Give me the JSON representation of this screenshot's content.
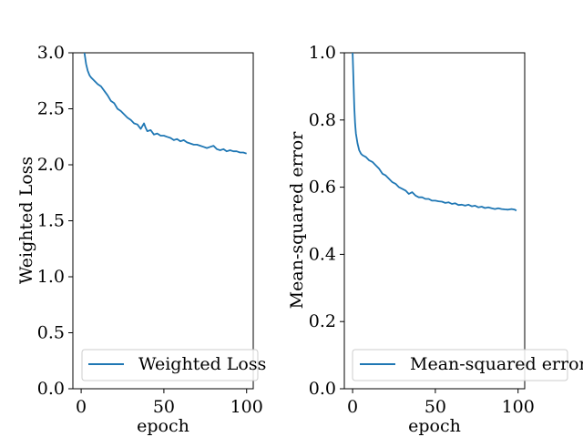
{
  "chart_data": [
    {
      "type": "line",
      "xlabel": "epoch",
      "ylabel": "Weighted Loss",
      "xlim": [
        -5,
        104
      ],
      "ylim": [
        0,
        3.0
      ],
      "xticks": [
        "0",
        "50",
        "100"
      ],
      "yticks": [
        "0.0",
        "0.5",
        "1.0",
        "1.5",
        "2.0",
        "2.5",
        "3.0"
      ],
      "grid": false,
      "legend_position": "lower-right",
      "series": [
        {
          "name": "Weighted Loss",
          "color": "#1f77b4",
          "x": [
            2,
            3,
            4,
            5,
            6,
            8,
            10,
            12,
            14,
            16,
            18,
            20,
            22,
            24,
            26,
            28,
            30,
            32,
            34,
            36,
            38,
            39,
            40,
            42,
            44,
            46,
            48,
            50,
            52,
            54,
            56,
            58,
            60,
            62,
            64,
            66,
            68,
            70,
            72,
            74,
            76,
            78,
            80,
            82,
            84,
            86,
            88,
            90,
            92,
            94,
            96,
            98,
            100
          ],
          "values": [
            3.0,
            2.9,
            2.84,
            2.8,
            2.78,
            2.75,
            2.72,
            2.7,
            2.66,
            2.62,
            2.57,
            2.55,
            2.5,
            2.48,
            2.45,
            2.42,
            2.4,
            2.37,
            2.36,
            2.32,
            2.37,
            2.33,
            2.3,
            2.31,
            2.27,
            2.28,
            2.26,
            2.26,
            2.25,
            2.24,
            2.22,
            2.23,
            2.21,
            2.22,
            2.2,
            2.19,
            2.18,
            2.18,
            2.17,
            2.16,
            2.15,
            2.16,
            2.17,
            2.14,
            2.13,
            2.14,
            2.12,
            2.13,
            2.12,
            2.12,
            2.11,
            2.11,
            2.1
          ]
        }
      ]
    },
    {
      "type": "line",
      "xlabel": "epoch",
      "ylabel": "Mean-squared error",
      "xlim": [
        -5,
        104
      ],
      "ylim": [
        0,
        1.0
      ],
      "xticks": [
        "0",
        "50",
        "100"
      ],
      "yticks": [
        "0.0",
        "0.2",
        "0.4",
        "0.6",
        "0.8",
        "1.0"
      ],
      "grid": false,
      "legend_position": "lower-right",
      "series": [
        {
          "name": "Mean-squared error",
          "color": "#1f77b4",
          "x": [
            0,
            0.5,
            1,
            1.5,
            2,
            3,
            4,
            5,
            6,
            8,
            10,
            12,
            14,
            16,
            18,
            20,
            22,
            24,
            26,
            28,
            30,
            32,
            34,
            36,
            38,
            40,
            42,
            44,
            46,
            48,
            50,
            52,
            54,
            56,
            58,
            60,
            62,
            64,
            66,
            68,
            70,
            72,
            74,
            76,
            78,
            80,
            82,
            84,
            86,
            88,
            90,
            92,
            94,
            96,
            98,
            99
          ],
          "values": [
            1.0,
            0.92,
            0.84,
            0.79,
            0.76,
            0.73,
            0.71,
            0.7,
            0.695,
            0.69,
            0.68,
            0.675,
            0.665,
            0.655,
            0.64,
            0.635,
            0.625,
            0.615,
            0.61,
            0.6,
            0.595,
            0.59,
            0.58,
            0.585,
            0.575,
            0.57,
            0.57,
            0.565,
            0.565,
            0.56,
            0.56,
            0.558,
            0.557,
            0.553,
            0.555,
            0.55,
            0.552,
            0.547,
            0.548,
            0.545,
            0.548,
            0.543,
            0.545,
            0.54,
            0.542,
            0.538,
            0.54,
            0.537,
            0.535,
            0.537,
            0.535,
            0.534,
            0.533,
            0.535,
            0.533,
            0.53
          ]
        }
      ]
    }
  ]
}
